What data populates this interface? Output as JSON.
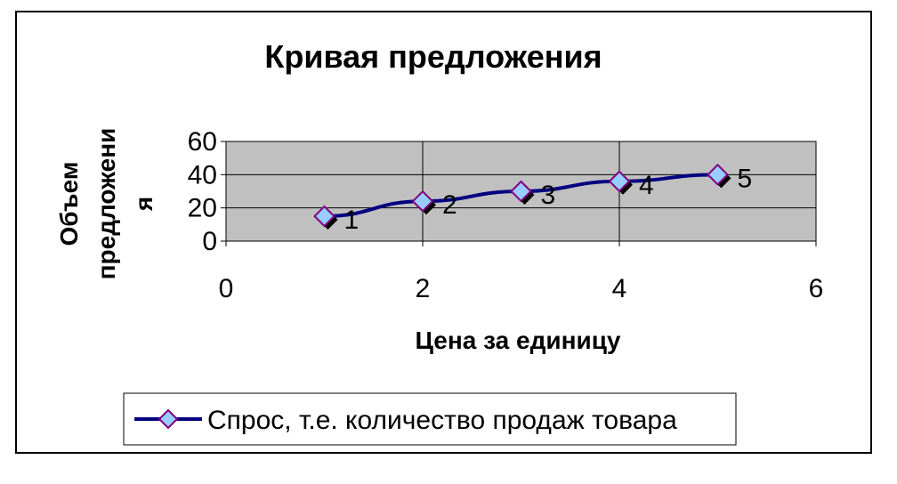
{
  "chart_data": {
    "type": "line",
    "title": "Кривая предложения",
    "xlabel": "Цена за единицу",
    "ylabel_lines": [
      "Объем",
      "предложени",
      "я"
    ],
    "x": [
      1,
      2,
      3,
      4,
      5
    ],
    "series": [
      {
        "name": "Спрос, т.е. количество продаж товара",
        "values": [
          15,
          24,
          30,
          36,
          40
        ],
        "point_labels": [
          "1",
          "2",
          "3",
          "4",
          "5"
        ]
      }
    ],
    "xlim": [
      0,
      6
    ],
    "ylim": [
      0,
      60
    ],
    "x_ticks": [
      0,
      2,
      4,
      6
    ],
    "y_ticks": [
      0,
      20,
      40,
      60
    ],
    "grid": true,
    "legend_position": "bottom",
    "colors": {
      "line": "#000080",
      "marker_fill": "#99ccff",
      "marker_stroke": "#800080",
      "plot_bg": "#c0c0c0"
    }
  }
}
